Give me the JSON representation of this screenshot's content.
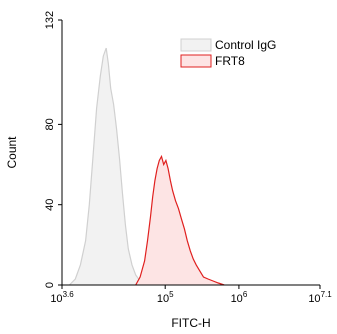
{
  "chart_data": {
    "type": "area",
    "xlabel": "FITC-H",
    "ylabel": "Count",
    "x_scale": "log10",
    "xlim": [
      3.6,
      7.1
    ],
    "ylim": [
      0,
      132
    ],
    "x_ticks": [
      {
        "value": 3.6,
        "base": "10",
        "exp": "3.6"
      },
      {
        "value": 5,
        "base": "10",
        "exp": "5"
      },
      {
        "value": 6,
        "base": "10",
        "exp": "6"
      },
      {
        "value": 7.1,
        "base": "10",
        "exp": "7.1"
      }
    ],
    "y_ticks": [
      {
        "value": 0,
        "label": "0"
      },
      {
        "value": 40,
        "label": "40"
      },
      {
        "value": 80,
        "label": "80"
      },
      {
        "value": 132,
        "label": "132"
      }
    ],
    "legend_position": "top-right",
    "series": [
      {
        "name": "Control IgG",
        "stroke": "#d0d0d0",
        "fill": "#f2f2f2",
        "x": [
          3.7,
          3.78,
          3.85,
          3.92,
          3.97,
          4.02,
          4.07,
          4.12,
          4.16,
          4.2,
          4.23,
          4.26,
          4.3,
          4.34,
          4.38,
          4.42,
          4.46,
          4.5,
          4.55,
          4.6,
          4.66,
          4.72,
          4.78
        ],
        "y": [
          0,
          3,
          10,
          22,
          40,
          64,
          88,
          104,
          114,
          118,
          110,
          98,
          90,
          78,
          63,
          46,
          30,
          18,
          10,
          5,
          2,
          1,
          0
        ]
      },
      {
        "name": "FRT8",
        "stroke": "#e0201f",
        "fill": "#fde4e4",
        "x": [
          4.6,
          4.66,
          4.72,
          4.76,
          4.8,
          4.83,
          4.86,
          4.89,
          4.92,
          4.95,
          4.98,
          5.01,
          5.04,
          5.07,
          5.1,
          5.14,
          5.18,
          5.22,
          5.26,
          5.3,
          5.34,
          5.38,
          5.42,
          5.47,
          5.52,
          5.58,
          5.65,
          5.72,
          5.8
        ],
        "y": [
          0,
          4,
          12,
          22,
          34,
          44,
          52,
          58,
          62,
          64,
          60,
          62,
          58,
          52,
          47,
          42,
          38,
          33,
          28,
          22,
          17,
          13,
          10,
          7,
          4,
          3,
          2,
          1,
          0
        ]
      }
    ]
  }
}
